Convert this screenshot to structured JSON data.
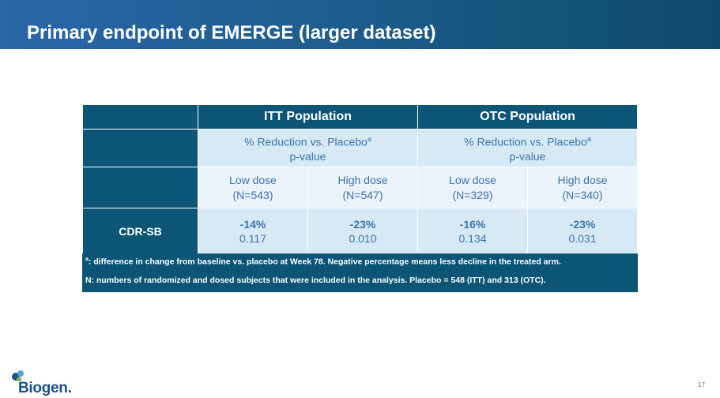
{
  "slide": {
    "title": "Primary endpoint of EMERGE (larger dataset)",
    "page_number": "17"
  },
  "table": {
    "populations": [
      {
        "label": "ITT Population",
        "sub_line1": "% Reduction vs. Placebo",
        "sub_sup": "a",
        "sub_line2": "p-value"
      },
      {
        "label": "OTC Population",
        "sub_line1": "% Reduction vs. Placebo",
        "sub_sup": "a",
        "sub_line2": "p-value"
      }
    ],
    "doses": [
      {
        "name": "Low dose",
        "n": "(N=543)"
      },
      {
        "name": "High dose",
        "n": "(N=547)"
      },
      {
        "name": "Low dose",
        "n": "(N=329)"
      },
      {
        "name": "High dose",
        "n": "(N=340)"
      }
    ],
    "rows": [
      {
        "label": "CDR-SB",
        "cells": [
          {
            "pct": "-14%",
            "p": "0.117"
          },
          {
            "pct": "-23%",
            "p": "0.010"
          },
          {
            "pct": "-16%",
            "p": "0.134"
          },
          {
            "pct": "-23%",
            "p": "0.031"
          }
        ]
      }
    ]
  },
  "footnotes": {
    "a_marker": "a",
    "a_text": ": difference in change from baseline vs. placebo at Week 78. Negative percentage means less decline in the treated arm.",
    "n_text": "N: numbers of randomized and dosed subjects that were included in the analysis. Placebo = 548 (ITT) and 313 (OTC)."
  },
  "logo": {
    "text": "Biogen.",
    "colors": {
      "blue": "#1e4f8c",
      "light_blue": "#4aa6de",
      "green": "#7ab648"
    }
  },
  "colors": {
    "header_gradient_start": "#2a66a8",
    "header_gradient_end": "#0d4a6b",
    "dark_cell": "#0c5576",
    "band_cell": "#d6e9f5",
    "light_cell": "#eaf3fa",
    "cell_text": "#3d73ad"
  }
}
